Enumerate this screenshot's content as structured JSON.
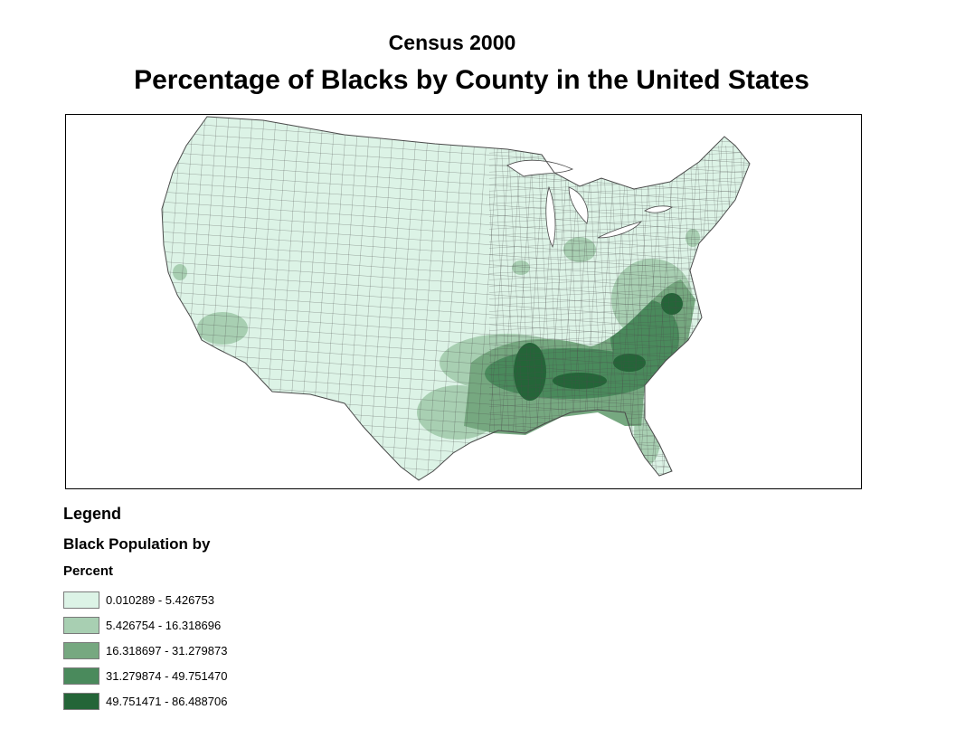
{
  "map": {
    "subtitle": "Census 2000",
    "title": "Percentage of Blacks by County in the United States"
  },
  "legend": {
    "heading": "Legend",
    "layer_name": "Black Population by",
    "field_name": "Percent",
    "classes": [
      {
        "label": "0.010289 - 5.426753",
        "color": "#dcf3e6"
      },
      {
        "label": "5.426754 - 16.318696",
        "color": "#a8cfb2"
      },
      {
        "label": "16.318697 - 31.279873",
        "color": "#76a880"
      },
      {
        "label": "31.279874 - 49.751470",
        "color": "#4a8a5c"
      },
      {
        "label": "49.751471 - 86.488706",
        "color": "#246538"
      }
    ]
  },
  "colors": {
    "county_border": "#4a4a4a",
    "frame_border": "#000000"
  }
}
